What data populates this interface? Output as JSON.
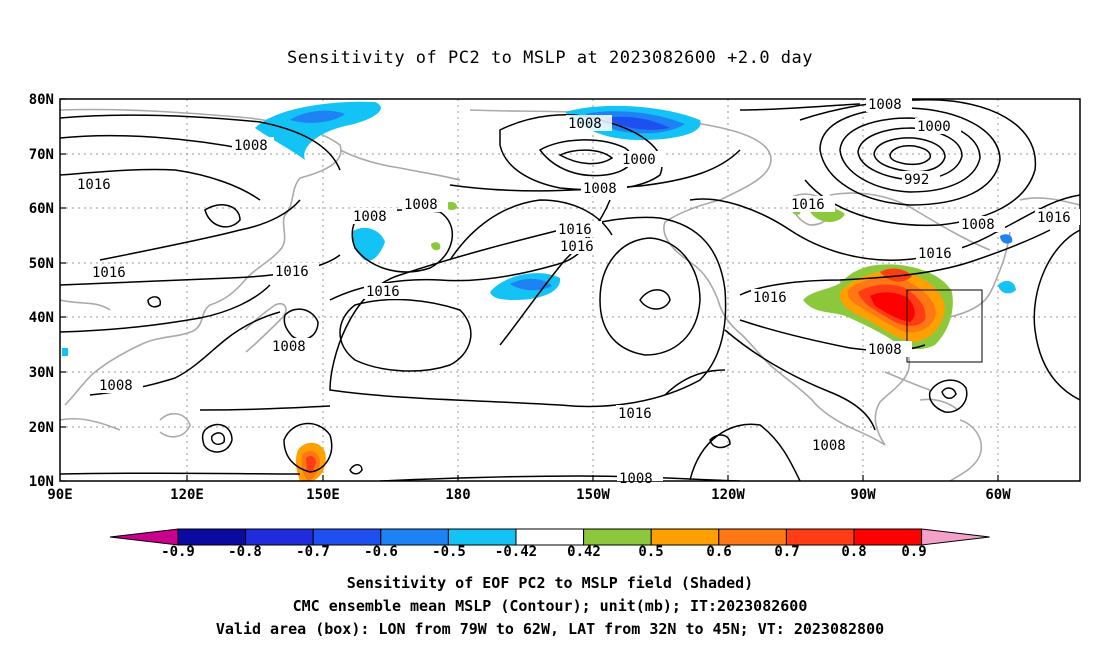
{
  "title": "Sensitivity of PC2 to MSLP at 2023082600 +2.0 day",
  "lat_axis": [
    "80N",
    "70N",
    "60N",
    "50N",
    "40N",
    "30N",
    "20N",
    "10N"
  ],
  "lon_axis": [
    "90E",
    "120E",
    "150E",
    "180",
    "150W",
    "120W",
    "90W",
    "60W"
  ],
  "contour_labels": [
    "1008",
    "1008",
    "1000",
    "1008",
    "1000",
    "992",
    "1016",
    "1008",
    "1008",
    "1016",
    "1016",
    "1016",
    "1016",
    "1016",
    "1016",
    "1008",
    "1016",
    "1016",
    "1008",
    "1008",
    "1008",
    "1016",
    "1008",
    "1008",
    "1016"
  ],
  "colorbar": {
    "labels": [
      "-0.9",
      "-0.8",
      "-0.7",
      "-0.6",
      "-0.5",
      "-0.42",
      "0.42",
      "0.5",
      "0.6",
      "0.7",
      "0.8",
      "0.9"
    ],
    "colors": [
      "#c8008c",
      "#0a0aa0",
      "#1e2cdc",
      "#1e50f0",
      "#1e82f5",
      "#14c3f5",
      "#ffffff",
      "#8cc83c",
      "#ffa000",
      "#ff7814",
      "#ff3c14",
      "#ff0000",
      "#f5a0c8"
    ]
  },
  "footer": {
    "line1": "Sensitivity of EOF PC2 to MSLP field (Shaded)",
    "line2": "CMC ensemble mean MSLP (Contour); unit(mb); IT:2023082600",
    "line3": "Valid area (box): LON from 79W to 62W, LAT from 32N to 45N; VT: 2023082800"
  }
}
